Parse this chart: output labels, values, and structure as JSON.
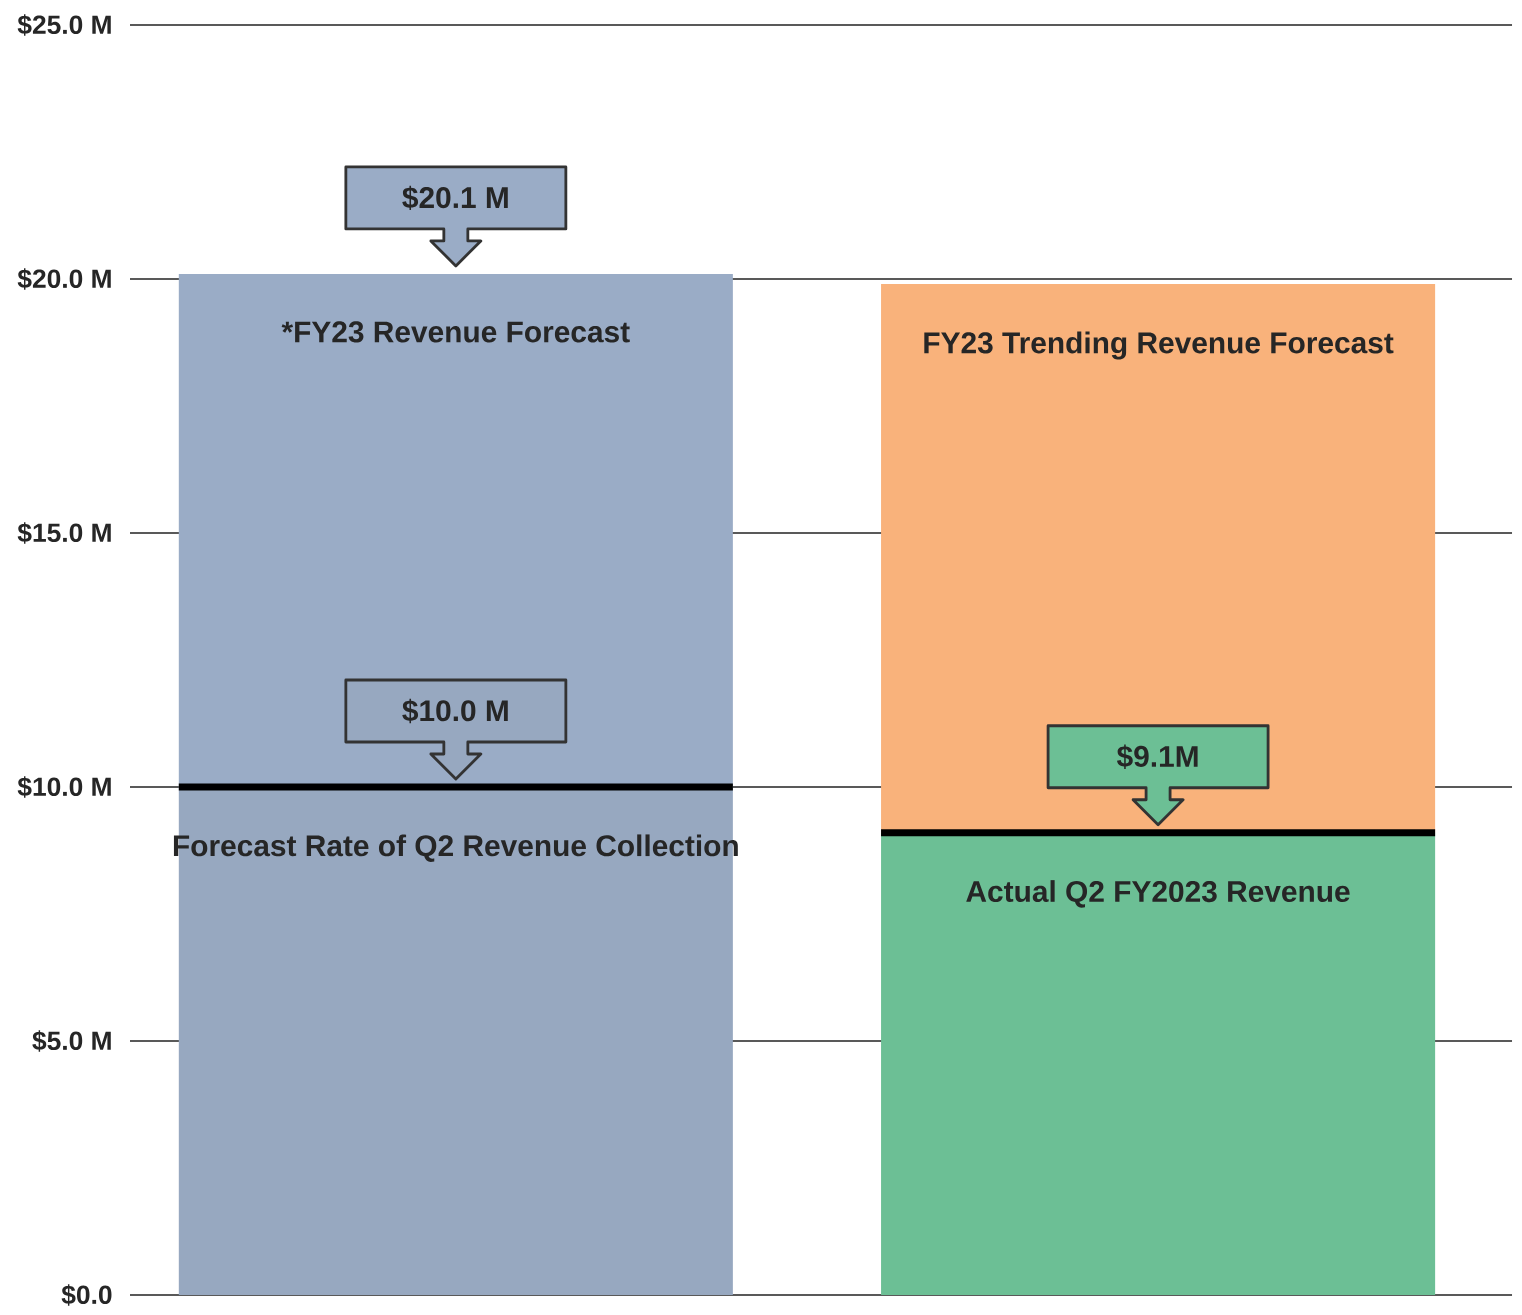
{
  "chart_data": {
    "type": "bar",
    "stacked": true,
    "categories": [
      null,
      null
    ],
    "series": [
      {
        "values": [
          10.0,
          9.1
        ],
        "colors": [
          "#97a8c0",
          "#6cbf95"
        ],
        "value_labels": [
          "$10.0 M",
          "$9.1M"
        ]
      },
      {
        "values": [
          10.1,
          10.8
        ],
        "colors": [
          "#9aacc6",
          "#f9b27b"
        ]
      }
    ],
    "totals": [
      "$20.1 M",
      null
    ],
    "ylim": [
      0,
      25
    ],
    "yticks": [
      {
        "value": 0,
        "label": "$0.0"
      },
      {
        "value": 5,
        "label": "$5.0 M"
      },
      {
        "value": 10,
        "label": "$10.0 M"
      },
      {
        "value": 15,
        "label": "$15.0 M"
      },
      {
        "value": 20,
        "label": "$20.0 M"
      },
      {
        "value": 25,
        "label": "$25.0 M"
      }
    ],
    "grid": "y",
    "annotations": [
      "*FY23 Revenue Forecast",
      "Forecast Rate of Q2 Revenue Collection",
      "FY23 Trending Revenue Forecast",
      "Actual Q2 FY2023 Revenue"
    ]
  }
}
